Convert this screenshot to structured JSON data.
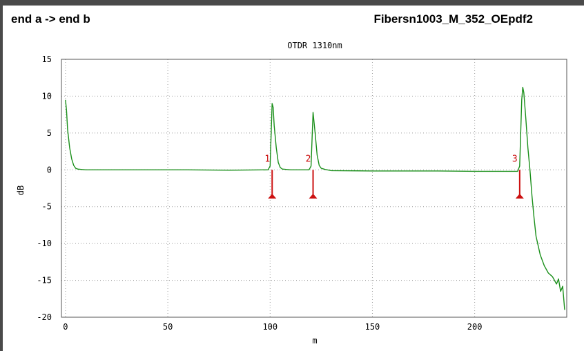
{
  "header": {
    "left_label": "end a -> end b",
    "right_label": "Fibersn1003_M_352_OEpdf2"
  },
  "colors": {
    "trace": "#1a8f1a",
    "marker": "#cc1111",
    "grid": "#9a9a9a",
    "frame": "#4a4a4a"
  },
  "chart_data": {
    "type": "line",
    "title": "OTDR 1310nm",
    "xlabel": "m",
    "ylabel": "dB",
    "xlim": [
      -2,
      245
    ],
    "ylim": [
      -20,
      15
    ],
    "x_ticks": [
      0,
      50,
      100,
      150,
      200
    ],
    "y_ticks": [
      15,
      10,
      5,
      0,
      -5,
      -10,
      -15,
      -20
    ],
    "grid": true,
    "series": [
      {
        "x": [
          0,
          0.5,
          1,
          2,
          3,
          4,
          5,
          6,
          8,
          10,
          20,
          40,
          60,
          80,
          99,
          100,
          101,
          101.5,
          102,
          103,
          104,
          105,
          106,
          110,
          119,
          120,
          121,
          122,
          123,
          124,
          125,
          127,
          130,
          150,
          180,
          200,
          221,
          222,
          223,
          223.5,
          224,
          225,
          226,
          227,
          228,
          229,
          230,
          232,
          234,
          236,
          238,
          240,
          241,
          242,
          243,
          244
        ],
        "y": [
          9.5,
          8,
          5.5,
          3,
          1.5,
          0.6,
          0.2,
          0.1,
          0.05,
          0,
          0,
          0,
          0,
          -0.05,
          0,
          0.5,
          9,
          8.5,
          6,
          3,
          1,
          0.3,
          0.1,
          0,
          0,
          0.5,
          7.8,
          5,
          2,
          0.6,
          0.2,
          0.05,
          -0.1,
          -0.15,
          -0.15,
          -0.2,
          -0.2,
          0.5,
          9.5,
          11.2,
          10.5,
          7,
          3,
          0,
          -3.5,
          -6.5,
          -9,
          -11.5,
          -13,
          -14,
          -14.5,
          -15.5,
          -14.8,
          -16.5,
          -15.8,
          -19
        ]
      }
    ],
    "events": [
      {
        "label": "1",
        "x": 101,
        "y": -3.8
      },
      {
        "label": "2",
        "x": 121,
        "y": -3.8
      },
      {
        "label": "3",
        "x": 222,
        "y": -3.8
      }
    ]
  }
}
